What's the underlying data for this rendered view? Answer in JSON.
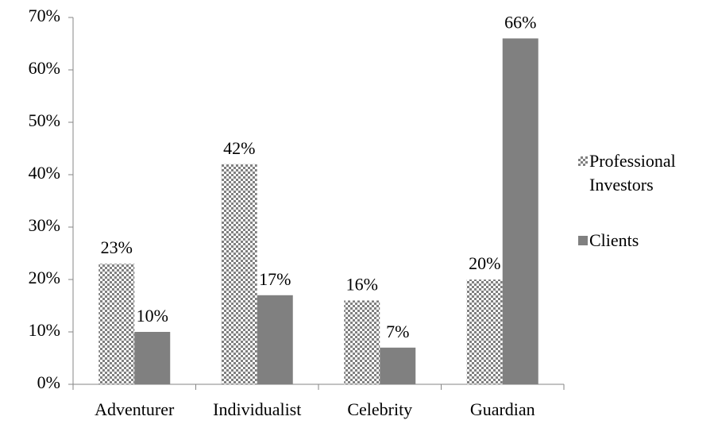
{
  "chart_data": {
    "type": "bar",
    "categories": [
      "Adventurer",
      "Individualist",
      "Celebrity",
      "Guardian"
    ],
    "series": [
      {
        "name": "Professional Investors",
        "color": "#808080",
        "pattern": true,
        "values": [
          23,
          42,
          16,
          20
        ],
        "value_labels": [
          "23%",
          "42%",
          "16%",
          "20%"
        ]
      },
      {
        "name": "Clients",
        "color": "#808080",
        "pattern": false,
        "values": [
          10,
          17,
          7,
          66
        ],
        "value_labels": [
          "10%",
          "17%",
          "7%",
          "66%"
        ]
      }
    ],
    "ylim": [
      0,
      70
    ],
    "yticks": [
      {
        "value": 0,
        "label": "0%"
      },
      {
        "value": 10,
        "label": "10%"
      },
      {
        "value": 20,
        "label": "20%"
      },
      {
        "value": 30,
        "label": "30%"
      },
      {
        "value": 40,
        "label": "40%"
      },
      {
        "value": 50,
        "label": "50%"
      },
      {
        "value": 60,
        "label": "60%"
      },
      {
        "value": 70,
        "label": "70%"
      }
    ],
    "grid": false,
    "legend": "right"
  }
}
